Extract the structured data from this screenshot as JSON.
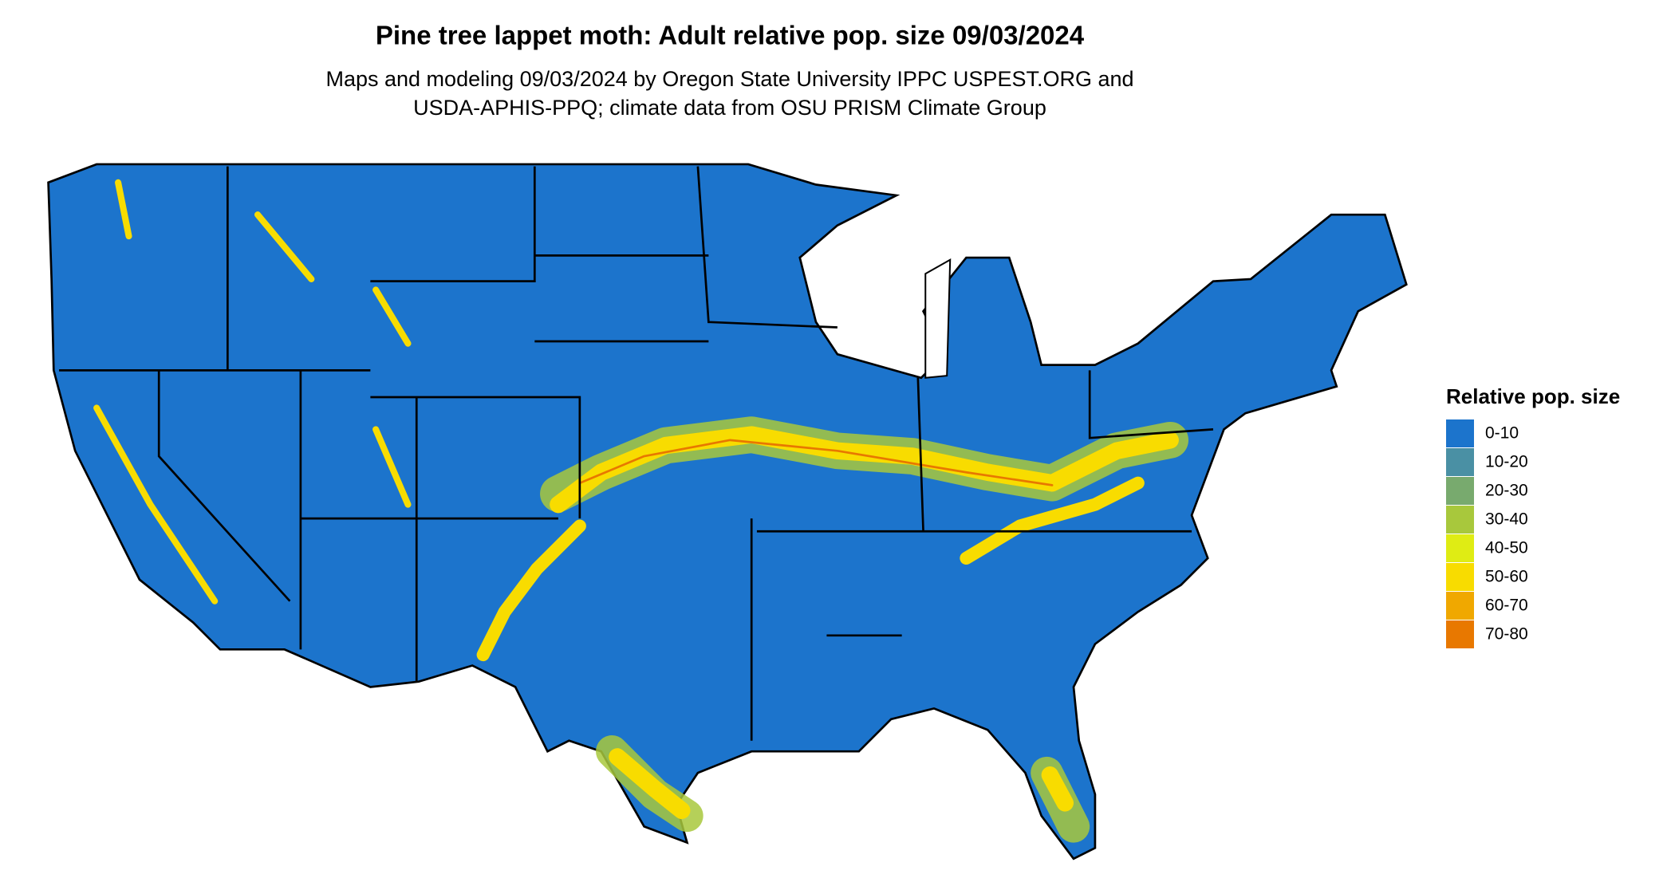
{
  "title": "Pine tree lappet moth: Adult relative pop. size 09/03/2024",
  "subtitle": [
    "Maps and modeling 09/03/2024 by Oregon State University IPPC USPEST.ORG and",
    "USDA-APHIS-PPQ; climate data from OSU PRISM Climate Group"
  ],
  "legend": {
    "title": "Relative pop. size",
    "items": [
      {
        "label": "0-10",
        "color": "#1c74cc"
      },
      {
        "label": "10-20",
        "color": "#4a90a4"
      },
      {
        "label": "20-30",
        "color": "#78aa6e"
      },
      {
        "label": "30-40",
        "color": "#a8c83c"
      },
      {
        "label": "40-50",
        "color": "#dfec14"
      },
      {
        "label": "50-60",
        "color": "#f8dc00"
      },
      {
        "label": "60-70",
        "color": "#f0a800"
      },
      {
        "label": "70-80",
        "color": "#e87800"
      }
    ]
  }
}
